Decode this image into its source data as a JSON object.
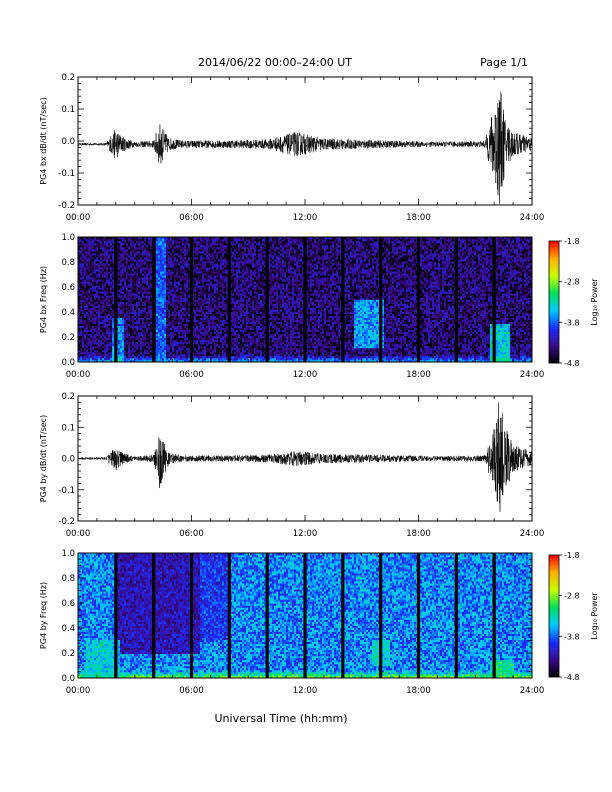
{
  "header": {
    "title": "2014/06/22  00:00–24:00 UT",
    "page": "Page 1/1"
  },
  "footer": {
    "xlabel": "Universal Time (hh:mm)"
  },
  "colorbar": {
    "label": "Log₁₀ Power",
    "ticks": [
      "-1.8",
      "-2.8",
      "-3.8",
      "-4.8"
    ],
    "values": [
      -1.8,
      -2.8,
      -3.8,
      -4.8
    ],
    "range": [
      -4.8,
      -1.8
    ],
    "colors": [
      "#000000",
      "#3a0a86",
      "#1a2cff",
      "#00c8ff",
      "#00e05a",
      "#c8ff00",
      "#ffb000",
      "#ff0000"
    ]
  },
  "chart_data": [
    {
      "type": "line",
      "id": "bx_wave",
      "title": "",
      "xlabel": "",
      "ylabel": "PG4 bx dB/dt (nT/sec)",
      "xlim": [
        0,
        24
      ],
      "ylim": [
        -0.2,
        0.2
      ],
      "xticks": [
        "00:00",
        "06:00",
        "12:00",
        "18:00",
        "24:00"
      ],
      "yticks": [
        "0.2",
        "0.1",
        "0.0",
        "-0.1",
        "-0.2"
      ],
      "ytick_values": [
        0.2,
        0.1,
        0.0,
        -0.1,
        -0.2
      ],
      "baseline": -0.01,
      "envelope": [
        [
          0.0,
          0.004
        ],
        [
          1.5,
          0.004
        ],
        [
          1.8,
          0.035
        ],
        [
          2.0,
          0.05
        ],
        [
          2.3,
          0.025
        ],
        [
          3.0,
          0.008
        ],
        [
          4.0,
          0.012
        ],
        [
          4.3,
          0.07
        ],
        [
          4.5,
          0.05
        ],
        [
          4.8,
          0.02
        ],
        [
          5.5,
          0.012
        ],
        [
          8.0,
          0.012
        ],
        [
          10.0,
          0.015
        ],
        [
          11.0,
          0.03
        ],
        [
          11.5,
          0.04
        ],
        [
          12.2,
          0.03
        ],
        [
          13.0,
          0.018
        ],
        [
          16.0,
          0.012
        ],
        [
          19.0,
          0.008
        ],
        [
          21.5,
          0.01
        ],
        [
          22.0,
          0.12
        ],
        [
          22.25,
          0.2
        ],
        [
          22.6,
          0.08
        ],
        [
          23.0,
          0.04
        ],
        [
          24.0,
          0.02
        ]
      ]
    },
    {
      "type": "heatmap",
      "id": "bx_spec",
      "title": "",
      "xlabel": "",
      "ylabel": "PG4 bx Freq (Hz)",
      "xlim": [
        0,
        24
      ],
      "ylim": [
        0,
        1
      ],
      "xticks": [
        "00:00",
        "06:00",
        "12:00",
        "18:00",
        "24:00"
      ],
      "yticks": [
        "1.0",
        "0.8",
        "0.6",
        "0.4",
        "0.2",
        "0.0"
      ],
      "ytick_values": [
        1.0,
        0.8,
        0.6,
        0.4,
        0.2,
        0.0
      ],
      "gaps": [
        2,
        4,
        6,
        8,
        10,
        12,
        14,
        16,
        18,
        20,
        22
      ],
      "background_level": -4.45,
      "features": [
        {
          "t": [
            1.8,
            2.4
          ],
          "f": [
            0,
            0.35
          ],
          "level": -3.3
        },
        {
          "t": [
            4.1,
            4.6
          ],
          "f": [
            0,
            1.0
          ],
          "level": -3.5
        },
        {
          "t": [
            14.6,
            16.2
          ],
          "f": [
            0.12,
            0.5
          ],
          "level": -3.2
        },
        {
          "t": [
            21.8,
            22.8
          ],
          "f": [
            0,
            0.3
          ],
          "level": -2.9
        }
      ]
    },
    {
      "type": "line",
      "id": "by_wave",
      "title": "",
      "xlabel": "",
      "ylabel": "PG4 by dB/dt (nT/sec)",
      "xlim": [
        0,
        24
      ],
      "ylim": [
        -0.2,
        0.2
      ],
      "xticks": [
        "00:00",
        "06:00",
        "12:00",
        "18:00",
        "24:00"
      ],
      "yticks": [
        "0.2",
        "0.1",
        "0.0",
        "-0.1",
        "-0.2"
      ],
      "ytick_values": [
        0.2,
        0.1,
        0.0,
        -0.1,
        -0.2
      ],
      "baseline": 0.0,
      "envelope": [
        [
          0.0,
          0.004
        ],
        [
          1.5,
          0.004
        ],
        [
          1.8,
          0.03
        ],
        [
          2.0,
          0.04
        ],
        [
          2.3,
          0.02
        ],
        [
          3.0,
          0.006
        ],
        [
          4.0,
          0.012
        ],
        [
          4.3,
          0.1
        ],
        [
          4.5,
          0.06
        ],
        [
          4.8,
          0.02
        ],
        [
          5.5,
          0.01
        ],
        [
          8.0,
          0.01
        ],
        [
          10.0,
          0.012
        ],
        [
          11.0,
          0.02
        ],
        [
          11.5,
          0.025
        ],
        [
          12.2,
          0.02
        ],
        [
          13.0,
          0.015
        ],
        [
          16.0,
          0.012
        ],
        [
          19.0,
          0.008
        ],
        [
          21.5,
          0.01
        ],
        [
          22.0,
          0.1
        ],
        [
          22.3,
          0.2
        ],
        [
          22.6,
          0.1
        ],
        [
          23.0,
          0.05
        ],
        [
          24.0,
          0.02
        ]
      ]
    },
    {
      "type": "heatmap",
      "id": "by_spec",
      "title": "",
      "xlabel": "",
      "ylabel": "PG4 by Freq (Hz)",
      "xlim": [
        0,
        24
      ],
      "ylim": [
        0,
        1
      ],
      "xticks": [
        "00:00",
        "06:00",
        "12:00",
        "18:00",
        "24:00"
      ],
      "yticks": [
        "1.0",
        "0.8",
        "0.6",
        "0.4",
        "0.2",
        "0.0"
      ],
      "ytick_values": [
        1.0,
        0.8,
        0.6,
        0.4,
        0.2,
        0.0
      ],
      "gaps": [
        2,
        4,
        6,
        8,
        10,
        12,
        14,
        16,
        18,
        20,
        22
      ],
      "background_level": -3.7,
      "features": [
        {
          "t": [
            2.0,
            6.5
          ],
          "f": [
            0.2,
            1.0
          ],
          "level": -4.5
        },
        {
          "t": [
            6.5,
            8.0
          ],
          "f": [
            0.3,
            1.0
          ],
          "level": -4.1
        },
        {
          "t": [
            0.4,
            2.2
          ],
          "f": [
            0,
            0.3
          ],
          "level": -3.3
        },
        {
          "t": [
            15.5,
            16.5
          ],
          "f": [
            0.1,
            0.3
          ],
          "level": -3.2
        },
        {
          "t": [
            21.8,
            23.0
          ],
          "f": [
            0,
            0.15
          ],
          "level": -3.0
        }
      ]
    }
  ]
}
